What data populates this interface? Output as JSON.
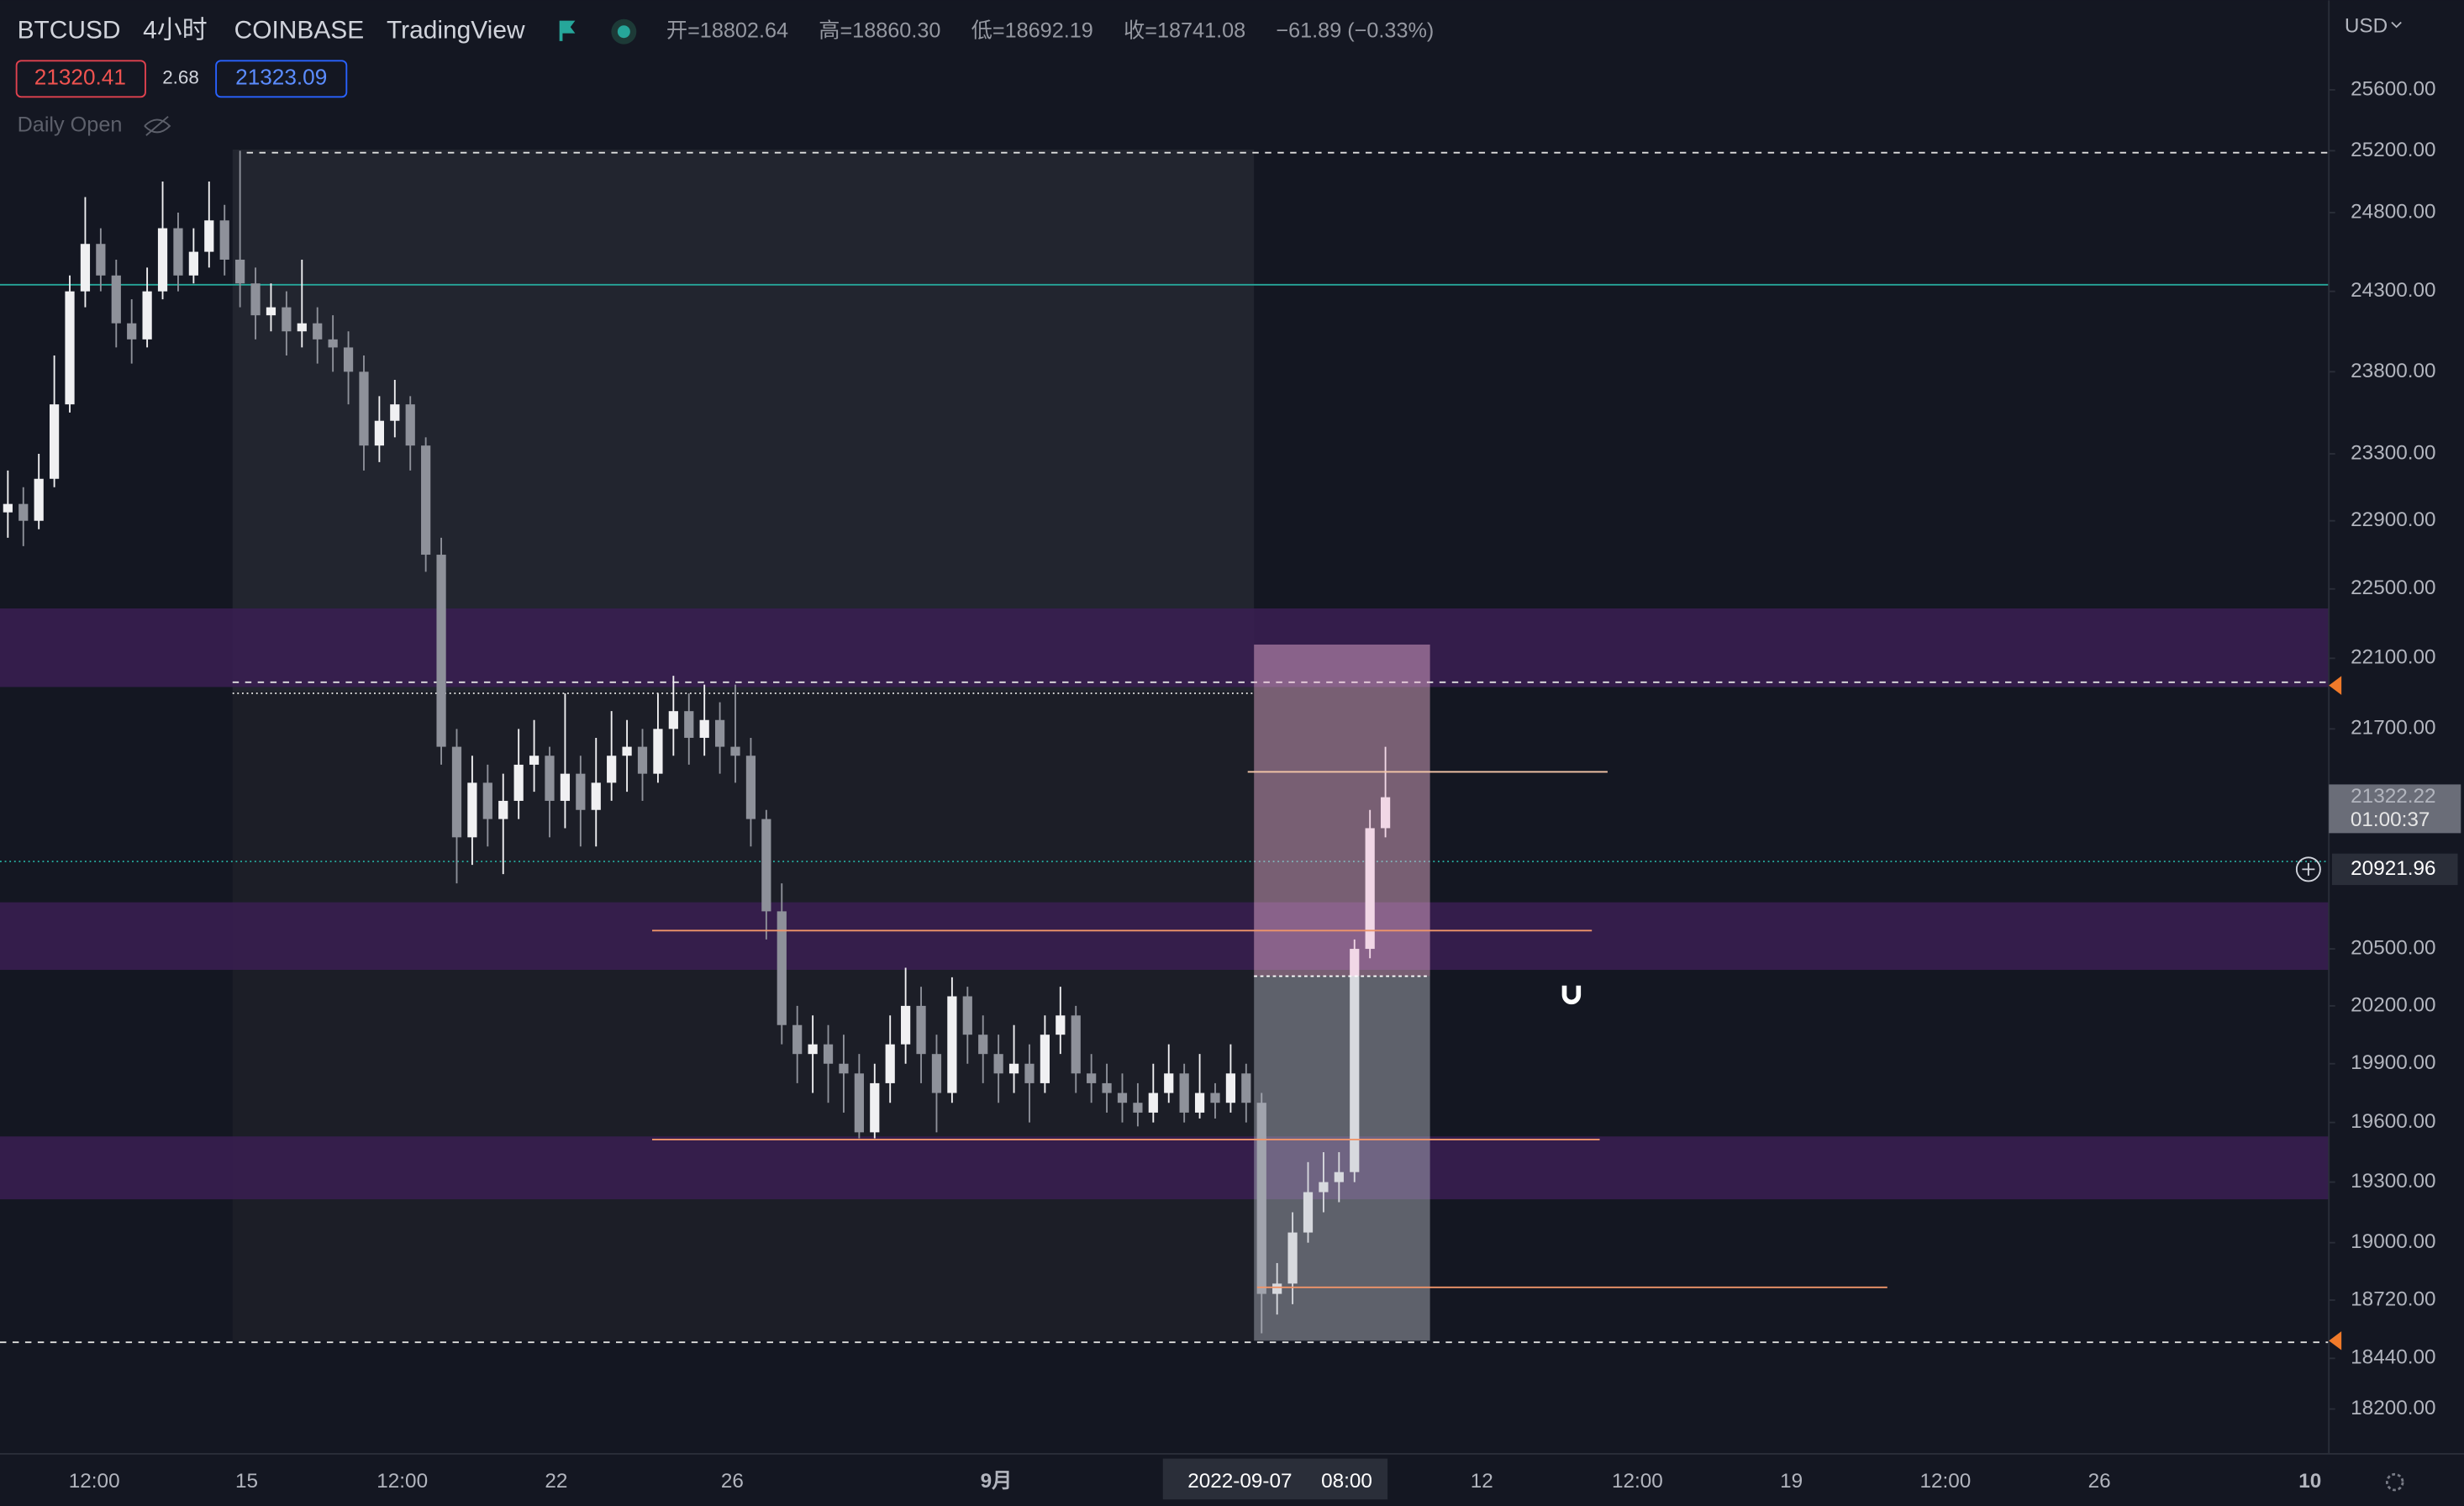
{
  "header": {
    "symbol": "BTCUSD",
    "interval": "4小时",
    "exchange": "COINBASE",
    "source": "TradingView",
    "open_label": "开=18802.64",
    "high_label": "高=18860.30",
    "low_label": "低=18692.19",
    "close_label": "收=18741.08",
    "change": "−61.89 (−0.33%)",
    "bid": "21320.41",
    "spread": "2.68",
    "ask": "21323.09",
    "indicator": "Daily Open",
    "currency": "USD"
  },
  "chart_data": {
    "type": "candlestick",
    "log_scale": true,
    "up_color": "#f0f0f2",
    "down_color": "#8e919a",
    "categories": [
      null,
      null,
      null,
      null,
      null,
      null,
      null,
      null,
      null,
      null,
      null,
      null,
      null,
      null,
      null,
      null,
      null,
      null,
      null,
      null,
      null,
      null,
      null,
      null,
      null,
      null,
      null,
      null,
      null,
      null,
      null,
      null,
      null,
      null,
      null,
      null,
      null,
      null,
      null,
      null,
      null,
      null,
      null,
      null,
      null,
      null,
      null,
      null,
      null,
      null,
      null,
      null,
      null,
      null,
      null,
      null,
      null,
      null,
      null,
      null,
      null,
      null,
      null,
      null,
      null,
      null,
      null,
      null,
      null,
      null,
      null,
      null,
      null,
      null,
      null,
      null,
      null,
      null,
      null,
      null,
      null,
      null,
      null,
      null,
      null,
      null,
      null,
      null,
      null,
      null
    ],
    "open": [
      22950,
      23000,
      22900,
      23150,
      23600,
      24300,
      24600,
      24400,
      24100,
      24000,
      24300,
      24700,
      24400,
      24550,
      24750,
      24500,
      24350,
      24150,
      24200,
      24050,
      24100,
      24000,
      23950,
      23800,
      23350,
      23500,
      23600,
      23350,
      22700,
      21600,
      21100,
      21400,
      21200,
      21300,
      21500,
      21550,
      21300,
      21450,
      21250,
      21400,
      21550,
      21600,
      21450,
      21700,
      21800,
      21650,
      21750,
      21600,
      21550,
      21200,
      20700,
      20100,
      19950,
      20000,
      19900,
      19850,
      19550,
      19800,
      20000,
      20200,
      19950,
      19750,
      20250,
      20050,
      19950,
      19850,
      19900,
      19800,
      20050,
      20150,
      19850,
      19800,
      19750,
      19700,
      19650,
      19750,
      19850,
      19650,
      19750,
      19700,
      19850,
      19700,
      18750,
      18800,
      19050,
      19250,
      19300,
      19350,
      20500,
      21150
    ],
    "high": [
      23200,
      23100,
      23300,
      23900,
      24400,
      24900,
      24700,
      24500,
      24250,
      24450,
      25000,
      24800,
      24700,
      25000,
      24850,
      25200,
      24450,
      24350,
      24300,
      24500,
      24200,
      24150,
      24050,
      23900,
      23650,
      23750,
      23650,
      23400,
      22800,
      21700,
      21550,
      21500,
      21450,
      21700,
      21750,
      21600,
      21900,
      21550,
      21650,
      21800,
      21750,
      21700,
      21900,
      22000,
      21900,
      21950,
      21850,
      21950,
      21650,
      21250,
      20850,
      20200,
      20150,
      20100,
      20050,
      19950,
      19900,
      20150,
      20400,
      20300,
      20050,
      20350,
      20300,
      20150,
      20050,
      20100,
      20000,
      20150,
      20300,
      20200,
      19950,
      19900,
      19850,
      19800,
      19900,
      20000,
      19900,
      19950,
      19800,
      20000,
      19900,
      19750,
      18900,
      19150,
      19400,
      19450,
      19450,
      20550,
      21250,
      21600
    ],
    "low": [
      22800,
      22750,
      22850,
      23100,
      23550,
      24200,
      24300,
      23950,
      23850,
      23950,
      24250,
      24300,
      24350,
      24450,
      24400,
      24200,
      24000,
      24050,
      23900,
      23950,
      23850,
      23800,
      23600,
      23200,
      23250,
      23400,
      23200,
      22600,
      21500,
      20850,
      20950,
      21050,
      20900,
      21200,
      21350,
      21100,
      21150,
      21050,
      21050,
      21300,
      21350,
      21300,
      21400,
      21550,
      21500,
      21550,
      21450,
      21400,
      21050,
      20550,
      20000,
      19800,
      19750,
      19700,
      19650,
      19520,
      19520,
      19700,
      19900,
      19800,
      19550,
      19700,
      19900,
      19800,
      19700,
      19750,
      19600,
      19750,
      19950,
      19750,
      19700,
      19650,
      19600,
      19580,
      19600,
      19700,
      19600,
      19620,
      19620,
      19650,
      19600,
      18560,
      18650,
      18700,
      19000,
      19150,
      19200,
      19300,
      20450,
      21100
    ],
    "close": [
      23000,
      22900,
      23150,
      23600,
      24300,
      24600,
      24400,
      24100,
      24000,
      24300,
      24700,
      24400,
      24550,
      24750,
      24500,
      24350,
      24150,
      24200,
      24050,
      24100,
      24000,
      23950,
      23800,
      23350,
      23500,
      23600,
      23350,
      22700,
      21600,
      21100,
      21400,
      21200,
      21300,
      21500,
      21550,
      21300,
      21450,
      21250,
      21400,
      21550,
      21600,
      21450,
      21700,
      21800,
      21650,
      21750,
      21600,
      21550,
      21200,
      20700,
      20100,
      19950,
      20000,
      19900,
      19850,
      19550,
      19800,
      20000,
      20200,
      19950,
      19750,
      20250,
      20050,
      19950,
      19850,
      19900,
      19800,
      20050,
      20150,
      19850,
      19800,
      19750,
      19700,
      19650,
      19750,
      19850,
      19650,
      19750,
      19700,
      19850,
      19700,
      18750,
      18800,
      19050,
      19250,
      19300,
      19350,
      20500,
      21150,
      21320
    ],
    "ylim": [
      17990,
      26200
    ],
    "yticks": [
      {
        "value": 25600,
        "label": "25600.00"
      },
      {
        "value": 25200,
        "label": "25200.00"
      },
      {
        "value": 24800,
        "label": "24800.00"
      },
      {
        "value": 24300,
        "label": "24300.00"
      },
      {
        "value": 23800,
        "label": "23800.00"
      },
      {
        "value": 23300,
        "label": "23300.00"
      },
      {
        "value": 22900,
        "label": "22900.00"
      },
      {
        "value": 22500,
        "label": "22500.00"
      },
      {
        "value": 22100,
        "label": "22100.00"
      },
      {
        "value": 21700,
        "label": "21700.00"
      },
      {
        "value": 20500,
        "label": "20500.00"
      },
      {
        "value": 20200,
        "label": "20200.00"
      },
      {
        "value": 19900,
        "label": "19900.00"
      },
      {
        "value": 19600,
        "label": "19600.00"
      },
      {
        "value": 19300,
        "label": "19300.00"
      },
      {
        "value": 19000,
        "label": "19000.00"
      },
      {
        "value": 18720,
        "label": "18720.00"
      },
      {
        "value": 18440,
        "label": "18440.00"
      },
      {
        "value": 18200,
        "label": "18200.00"
      }
    ],
    "xtick_labels": [
      "12:00",
      "15",
      "12:00",
      "22",
      "26",
      "9月",
      "12",
      "12:00",
      "19",
      "12:00",
      "26",
      "10"
    ],
    "last_price": 21322.22,
    "countdown": "01:00:37",
    "crosshair": {
      "price": 20921.96,
      "date": "2022-09-07",
      "time": "08:00"
    }
  }
}
